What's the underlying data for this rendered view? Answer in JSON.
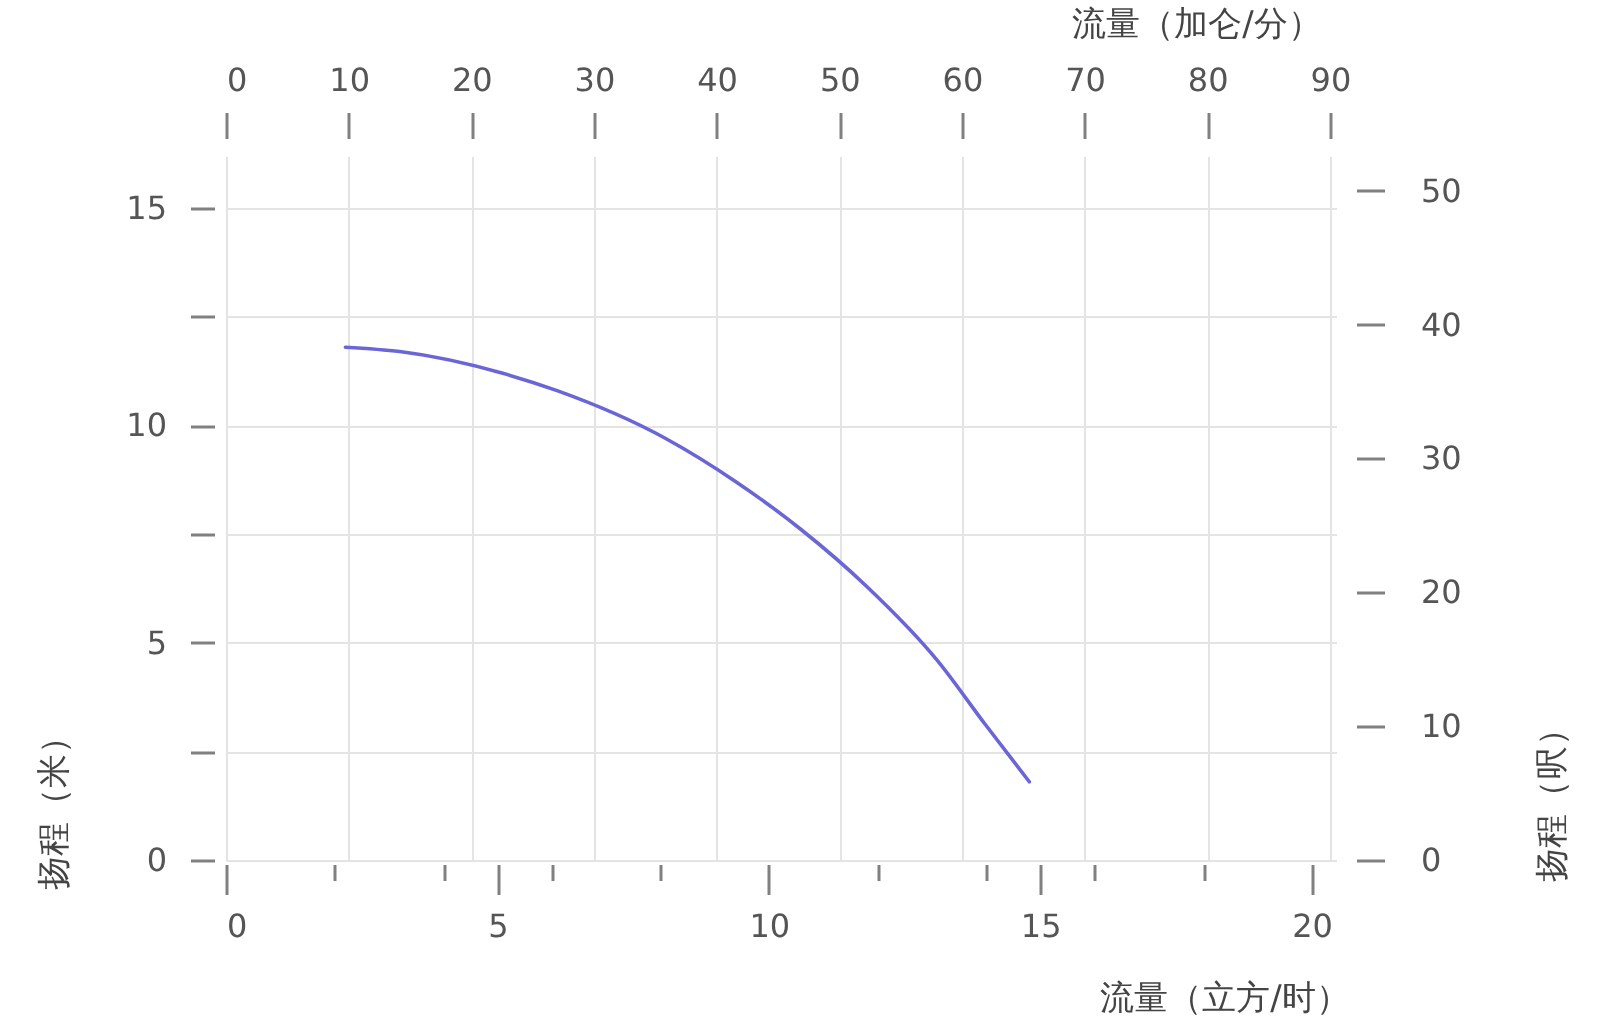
{
  "chart_data": {
    "type": "line",
    "xlabel": "流量（立方/时）",
    "x2label": "流量（加仑/分）",
    "ylabel": "扬程（米）",
    "y2label": "扬程（呎）",
    "x": [
      2.2,
      3.2,
      5.1,
      6.1,
      8.1,
      9.4,
      10.6,
      11.8,
      13.1,
      14.0,
      14.8
    ],
    "series": [
      {
        "color": "#6b66d6",
        "values": [
          11.8,
          11.7,
          11.2,
          10.8,
          9.7,
          8.7,
          7.6,
          6.3,
          4.6,
          3.1,
          1.8
        ]
      }
    ],
    "xlim": [
      0,
      20.45
    ],
    "xticks": [
      0,
      {
        "value": 2,
        "label": null
      },
      {
        "value": 4,
        "label": null
      },
      5,
      {
        "value": 6,
        "label": null
      },
      {
        "value": 8,
        "label": null
      },
      10,
      {
        "value": 12,
        "label": null
      },
      {
        "value": 14,
        "label": null
      },
      15,
      {
        "value": 16,
        "label": null
      },
      {
        "value": 18,
        "label": null
      },
      20
    ],
    "x2lim": [
      0,
      90.5
    ],
    "x2ticks": [
      0,
      10,
      20,
      30,
      40,
      50,
      60,
      70,
      80,
      90
    ],
    "ylim": [
      0,
      16.2
    ],
    "yticks": [
      0,
      {
        "value": 2.5,
        "label": null
      },
      5,
      {
        "value": 7.5,
        "label": null
      },
      10,
      {
        "value": 12.5,
        "label": null
      },
      15
    ],
    "y2lim": [
      0,
      52.6
    ],
    "y2ticks": [
      0,
      10,
      20,
      30,
      40,
      50
    ],
    "grid": true,
    "line_style": "solid"
  }
}
